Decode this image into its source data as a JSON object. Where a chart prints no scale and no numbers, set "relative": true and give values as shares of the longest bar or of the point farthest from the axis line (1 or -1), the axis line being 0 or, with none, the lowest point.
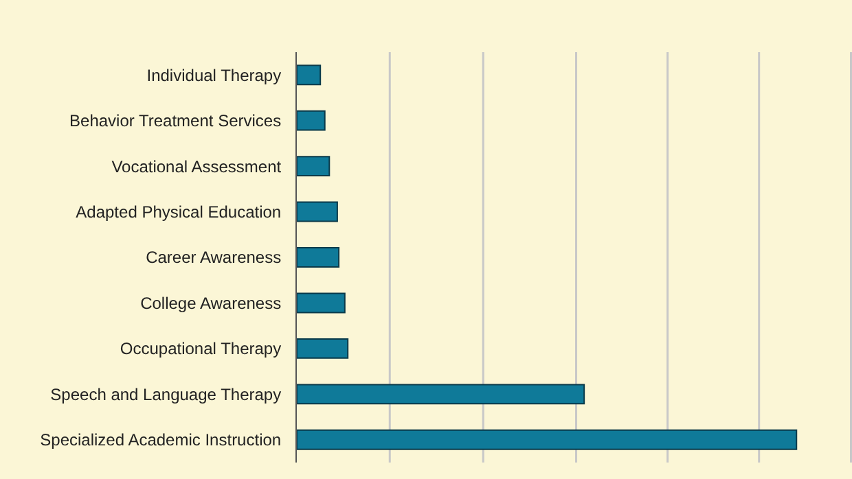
{
  "chart_data": {
    "type": "bar",
    "orientation": "horizontal",
    "relative": true,
    "categories": [
      "Individual Therapy",
      "Behavior Treatment Services",
      "Vocational Assessment",
      "Adapted Physical Education",
      "Career Awareness",
      "College Awareness",
      "Occupational Therapy",
      "Speech and Language Therapy",
      "Specialized Academic Instruction"
    ],
    "values": [
      0.047,
      0.056,
      0.065,
      0.081,
      0.084,
      0.096,
      0.102,
      0.575,
      1
    ],
    "color": "#0f7a99",
    "ref_lines": [
      {
        "axis": "x",
        "value": 0.186,
        "color": "#c8c8c8"
      },
      {
        "axis": "x",
        "value": 0.373,
        "color": "#c8c8c8"
      },
      {
        "axis": "x",
        "value": 0.559,
        "color": "#c8c8c8"
      },
      {
        "axis": "x",
        "value": 0.742,
        "color": "#c8c8c8"
      },
      {
        "axis": "x",
        "value": 0.925,
        "color": "#c8c8c8"
      },
      {
        "axis": "x",
        "value": 1.109,
        "color": "#c8c8c8"
      }
    ]
  }
}
